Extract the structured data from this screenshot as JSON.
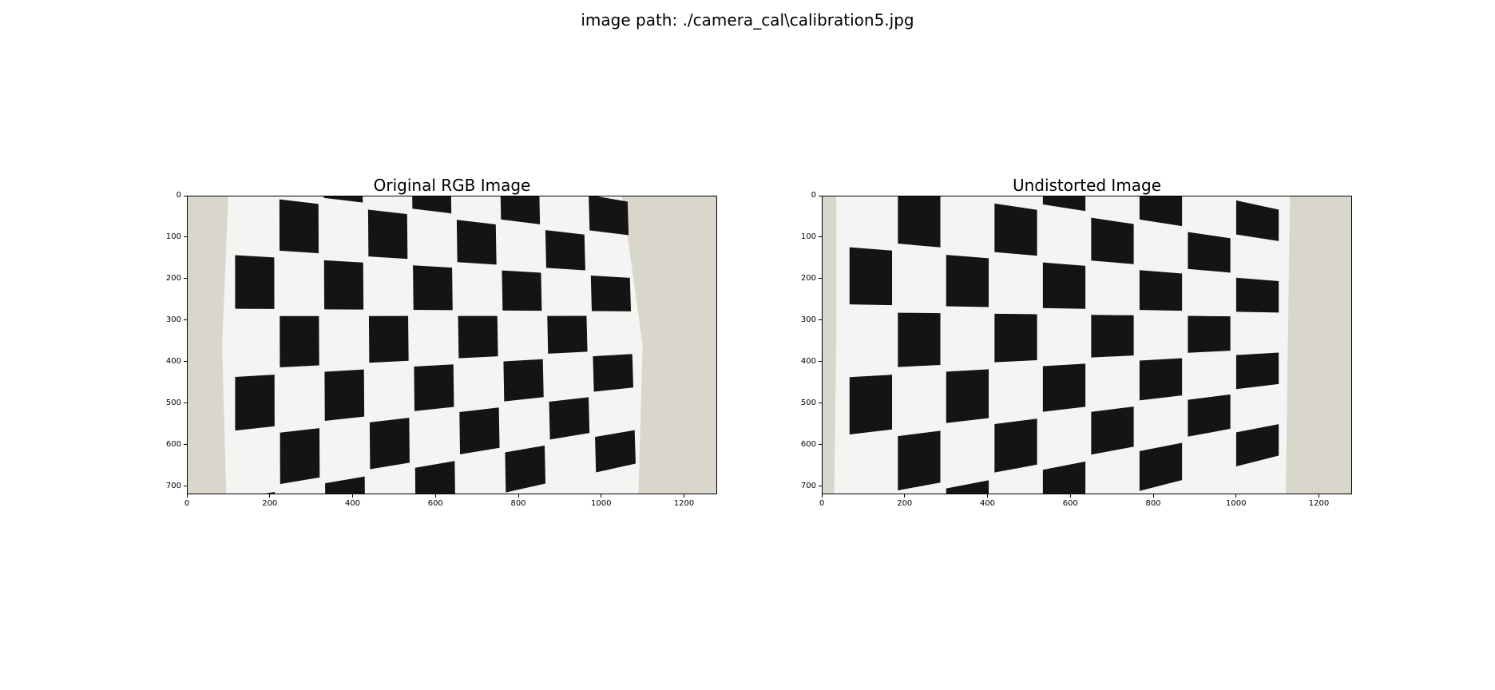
{
  "figure": {
    "suptitle": "image path: ./camera_cal\\calibration5.jpg"
  },
  "panels": [
    {
      "id": "original",
      "title": "Original RGB Image",
      "xticks": [
        "0",
        "200",
        "400",
        "600",
        "800",
        "1000",
        "1200"
      ],
      "yticks": [
        "0",
        "100",
        "200",
        "300",
        "400",
        "500",
        "600",
        "700"
      ],
      "xtick_values": [
        0,
        200,
        400,
        600,
        800,
        1000,
        1200
      ],
      "ytick_values": [
        0,
        100,
        200,
        300,
        400,
        500,
        600,
        700
      ],
      "xlim": [
        0,
        1280
      ],
      "ylim": [
        720,
        0
      ]
    },
    {
      "id": "undistorted",
      "title": "Undistorted Image",
      "xticks": [
        "0",
        "200",
        "400",
        "600",
        "800",
        "1000",
        "1200"
      ],
      "yticks": [
        "0",
        "100",
        "200",
        "300",
        "400",
        "500",
        "600",
        "700"
      ],
      "xtick_values": [
        0,
        200,
        400,
        600,
        800,
        1000,
        1200
      ],
      "ytick_values": [
        0,
        100,
        200,
        300,
        400,
        500,
        600,
        700
      ],
      "xlim": [
        0,
        1280
      ],
      "ylim": [
        720,
        0
      ]
    }
  ],
  "colors": {
    "wall": "#d9d7cc",
    "paper": "#f4f4f2",
    "square": "#141414"
  }
}
